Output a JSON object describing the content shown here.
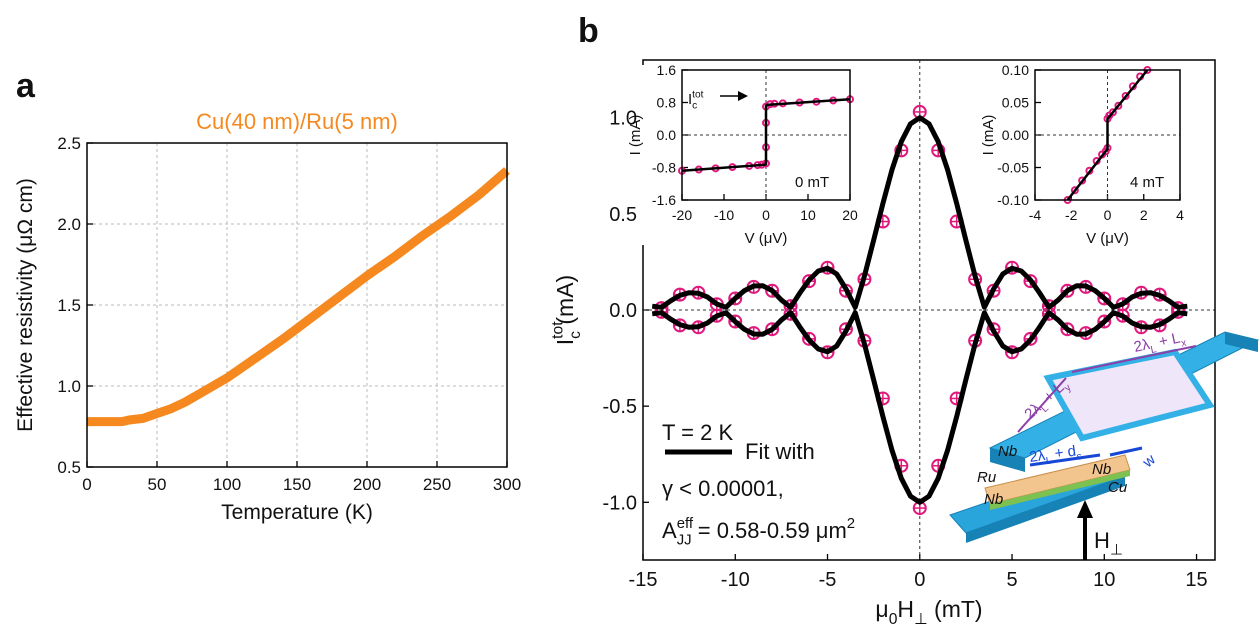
{
  "panels": [
    "a",
    "b"
  ],
  "chart_data": [
    {
      "type": "line",
      "title": "Cu(40 nm)/Ru(5 nm)",
      "xlabel": "Temperature (K)",
      "ylabel": "Effective resistivity (μΩ cm)",
      "xlim": [
        0,
        300
      ],
      "ylim": [
        0.5,
        2.5
      ],
      "xticks": [
        0,
        50,
        100,
        150,
        200,
        250,
        300
      ],
      "yticks": [
        0.5,
        {
          "value": 1,
          "label": "1.0"
        },
        1.5,
        {
          "value": 2,
          "label": "2.0"
        },
        2.5
      ],
      "grid": true,
      "series": [
        {
          "style": "thick-line",
          "color": "#f5891f",
          "x": [
            0,
            10,
            20,
            25,
            30,
            40,
            50,
            60,
            70,
            80,
            90,
            100,
            120,
            140,
            160,
            180,
            200,
            220,
            240,
            260,
            280,
            300
          ],
          "values": [
            0.78,
            0.78,
            0.78,
            0.78,
            0.79,
            0.8,
            0.83,
            0.86,
            0.9,
            0.95,
            1.0,
            1.05,
            1.17,
            1.29,
            1.42,
            1.55,
            1.68,
            1.8,
            1.93,
            2.05,
            2.18,
            2.33
          ]
        }
      ]
    },
    {
      "type": "line",
      "xlabel": [
        {
          "text": "μ"
        },
        {
          "sub": "0"
        },
        {
          "text": "H"
        },
        {
          "sub": "⊥"
        },
        {
          "text": " (mT)"
        }
      ],
      "ylabel": [
        {
          "text": "I"
        },
        {
          "sup": "tot"
        },
        {
          "sub": "c"
        },
        {
          "text": " (mA)"
        }
      ],
      "xlim": [
        -15,
        16
      ],
      "ylim": [
        -1.3,
        1.3
      ],
      "xticks": [
        -15,
        -10,
        -5,
        0,
        5,
        10,
        15
      ],
      "yticks": [
        {
          "value": -1,
          "label": "-1.0"
        },
        -0.5,
        {
          "value": 0,
          "label": "0.0"
        },
        0.5,
        {
          "value": 1,
          "label": "1.0"
        }
      ],
      "zero_lines": true,
      "annotations": [
        [
          {
            "text": "T = 2 K"
          }
        ],
        [
          {
            "text": "Fit with"
          }
        ],
        [
          {
            "text": "γ < 0.00001,"
          }
        ],
        [
          {
            "text": "A"
          },
          {
            "sup": "eff"
          },
          {
            "sub": "JJ"
          },
          {
            "text": " = 0.58-0.59 μm"
          },
          {
            "sup": "2"
          }
        ]
      ],
      "series": [
        {
          "style": "markers",
          "color": "#e0197d",
          "x": [
            -14,
            -13,
            -12,
            -11,
            -10,
            -9,
            -8,
            -7,
            -6,
            -5,
            -4,
            -3,
            -2,
            -1,
            0,
            1,
            2,
            3,
            4,
            5,
            6,
            7,
            8,
            9,
            10,
            11,
            12,
            13,
            14
          ],
          "values": [
            0.01,
            0.08,
            0.09,
            0.03,
            0.06,
            0.12,
            0.1,
            0.02,
            0.15,
            0.22,
            0.1,
            0.16,
            0.46,
            0.83,
            1.03,
            0.83,
            0.46,
            0.16,
            0.1,
            0.22,
            0.15,
            0.02,
            0.1,
            0.12,
            0.06,
            0.03,
            0.09,
            0.08,
            0.01
          ]
        },
        {
          "style": "markers",
          "color": "#e0197d",
          "x": [
            -14,
            -13,
            -12,
            -11,
            -10,
            -9,
            -8,
            -7,
            -6,
            -5,
            -4,
            -3,
            -2,
            -1,
            0,
            1,
            2,
            3,
            4,
            5,
            6,
            7,
            8,
            9,
            10,
            11,
            12,
            13,
            14
          ],
          "values": [
            -0.01,
            -0.08,
            -0.09,
            -0.03,
            -0.06,
            -0.12,
            -0.1,
            -0.02,
            -0.15,
            -0.22,
            -0.1,
            -0.16,
            -0.46,
            -0.81,
            -1.03,
            -0.81,
            -0.46,
            -0.16,
            -0.1,
            -0.22,
            -0.15,
            -0.02,
            -0.1,
            -0.12,
            -0.06,
            -0.03,
            -0.09,
            -0.08,
            -0.01
          ]
        },
        {
          "style": "line",
          "color": "#000000",
          "x": [
            -14.5,
            -14,
            -13.5,
            -13,
            -12.5,
            -12,
            -11.5,
            -11,
            -10.5,
            -10,
            -9.5,
            -9,
            -8.5,
            -8,
            -7.5,
            -7,
            -6.5,
            -6,
            -5.5,
            -5,
            -4.5,
            -4,
            -3.5,
            -3,
            -2.5,
            -2,
            -1.5,
            -1,
            -0.5,
            0,
            0.5,
            1,
            1.5,
            2,
            2.5,
            3,
            3.5,
            4,
            4.5,
            5,
            5.5,
            6,
            6.5,
            7,
            7.5,
            8,
            8.5,
            9,
            9.5,
            10,
            10.5,
            11,
            11.5,
            12,
            12.5,
            13,
            13.5,
            14,
            14.5
          ],
          "values": [
            0.02,
            0.014,
            0.048,
            0.076,
            0.09,
            0.087,
            0.067,
            0.031,
            0.014,
            0.061,
            0.101,
            0.125,
            0.126,
            0.101,
            0.052,
            0.014,
            0.088,
            0.156,
            0.203,
            0.217,
            0.187,
            0.109,
            0.014,
            0.176,
            0.362,
            0.554,
            0.731,
            0.875,
            0.968,
            1.0,
            0.968,
            0.875,
            0.731,
            0.554,
            0.362,
            0.176,
            0.014,
            0.109,
            0.187,
            0.217,
            0.203,
            0.156,
            0.088,
            0.014,
            0.052,
            0.101,
            0.126,
            0.125,
            0.101,
            0.061,
            0.014,
            0.031,
            0.067,
            0.087,
            0.09,
            0.076,
            0.048,
            0.014,
            0.02
          ]
        },
        {
          "style": "line",
          "color": "#000000",
          "x": [
            -14.5,
            -14,
            -13.5,
            -13,
            -12.5,
            -12,
            -11.5,
            -11,
            -10.5,
            -10,
            -9.5,
            -9,
            -8.5,
            -8,
            -7.5,
            -7,
            -6.5,
            -6,
            -5.5,
            -5,
            -4.5,
            -4,
            -3.5,
            -3,
            -2.5,
            -2,
            -1.5,
            -1,
            -0.5,
            0,
            0.5,
            1,
            1.5,
            2,
            2.5,
            3,
            3.5,
            4,
            4.5,
            5,
            5.5,
            6,
            6.5,
            7,
            7.5,
            8,
            8.5,
            9,
            9.5,
            10,
            10.5,
            11,
            11.5,
            12,
            12.5,
            13,
            13.5,
            14,
            14.5
          ],
          "values": [
            -0.02,
            -0.014,
            -0.048,
            -0.076,
            -0.09,
            -0.087,
            -0.067,
            -0.031,
            -0.014,
            -0.061,
            -0.101,
            -0.125,
            -0.126,
            -0.101,
            -0.052,
            -0.014,
            -0.088,
            -0.156,
            -0.203,
            -0.217,
            -0.187,
            -0.109,
            -0.014,
            -0.176,
            -0.362,
            -0.554,
            -0.731,
            -0.875,
            -0.968,
            -1.0,
            -0.968,
            -0.875,
            -0.731,
            -0.554,
            -0.362,
            -0.176,
            -0.014,
            -0.109,
            -0.187,
            -0.217,
            -0.203,
            -0.156,
            -0.088,
            -0.014,
            -0.052,
            -0.101,
            -0.126,
            -0.125,
            -0.101,
            -0.061,
            -0.014,
            -0.031,
            -0.067,
            -0.087,
            -0.09,
            -0.076,
            -0.048,
            -0.014,
            -0.02
          ]
        }
      ]
    },
    {
      "type": "line",
      "xlabel": "V (μV)",
      "ylabel": "I (mA)",
      "xlim": [
        -20,
        20
      ],
      "ylim": [
        -1.6,
        1.6
      ],
      "xticks": [
        -20,
        -10,
        0,
        10,
        20
      ],
      "yticks": [
        -1.6,
        -0.8,
        {
          "value": 0,
          "label": "0.0"
        },
        0.8,
        1.6
      ],
      "zero_lines": true,
      "annotations": [
        [
          {
            "text": "0 mT"
          }
        ],
        [
          {
            "text": "I"
          },
          {
            "sup": "tot"
          },
          {
            "sub": "c"
          }
        ]
      ],
      "series": [
        {
          "style": "small-markers",
          "color": "#e0197d",
          "x": [
            -20,
            -16,
            -12,
            -8,
            -4,
            -2,
            -1,
            0,
            0,
            0,
            0,
            1,
            2,
            4,
            8,
            12,
            16,
            20
          ],
          "values": [
            -0.88,
            -0.85,
            -0.82,
            -0.79,
            -0.76,
            -0.74,
            -0.73,
            -0.7,
            -0.3,
            0.3,
            0.7,
            0.76,
            0.77,
            0.78,
            0.8,
            0.82,
            0.85,
            0.88
          ]
        },
        {
          "style": "line",
          "color": "#000000",
          "x": [
            -20,
            -0.3,
            0,
            0,
            0.3,
            20
          ],
          "values": [
            -0.88,
            -0.73,
            -0.72,
            0.72,
            0.74,
            0.88
          ]
        }
      ]
    },
    {
      "type": "line",
      "xlabel": "V (μV)",
      "ylabel": "I (mA)",
      "xlim": [
        -4,
        4
      ],
      "ylim": [
        -0.1,
        0.1
      ],
      "xticks": [
        -4,
        -2,
        0,
        2,
        4
      ],
      "yticks": [
        {
          "value": -0.1,
          "label": "-0.10"
        },
        -0.05,
        {
          "value": 0,
          "label": "0.00"
        },
        0.05,
        {
          "value": 0.1,
          "label": "0.10"
        }
      ],
      "zero_lines": true,
      "annotations": [
        [
          {
            "text": "4 mT"
          }
        ]
      ],
      "series": [
        {
          "style": "small-markers",
          "color": "#e0197d",
          "x": [
            -2.2,
            -1.8,
            -1.4,
            -1,
            -0.6,
            -0.3,
            -0.1,
            0,
            0,
            0.1,
            0.3,
            0.6,
            1,
            1.4,
            1.8,
            2.2
          ],
          "values": [
            -0.1,
            -0.085,
            -0.07,
            -0.055,
            -0.04,
            -0.03,
            -0.025,
            -0.02,
            0.025,
            0.03,
            0.035,
            0.045,
            0.06,
            0.075,
            0.09,
            0.1
          ]
        },
        {
          "style": "line",
          "color": "#000000",
          "x": [
            -2.2,
            -0.1,
            0,
            0,
            0.1,
            2.2
          ],
          "values": [
            -0.1,
            -0.025,
            -0.022,
            0.025,
            0.028,
            0.1
          ]
        }
      ]
    }
  ],
  "schematic": {
    "labels": [
      [
        {
          "text": "2λ"
        },
        {
          "sub": "L"
        },
        {
          "text": " + L"
        },
        {
          "sub": "y"
        }
      ],
      [
        {
          "text": "2λ"
        },
        {
          "sub": "L"
        },
        {
          "text": " + L"
        },
        {
          "sub": "x"
        }
      ],
      [
        {
          "text": "2λ"
        },
        {
          "sub": "L"
        },
        {
          "text": " + d"
        },
        {
          "sub": "s"
        }
      ],
      [
        {
          "text": "Nb"
        }
      ],
      [
        {
          "text": "Nb"
        }
      ],
      [
        {
          "text": "Ru"
        }
      ],
      [
        {
          "text": "Cu"
        }
      ],
      [
        {
          "text": "Nb"
        }
      ],
      [
        {
          "text": "w"
        }
      ],
      [
        {
          "text": "H"
        },
        {
          "sub": "⊥"
        }
      ]
    ]
  }
}
